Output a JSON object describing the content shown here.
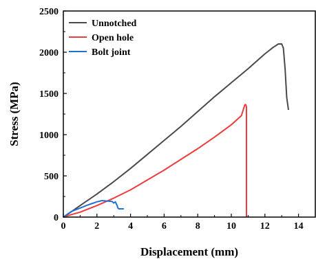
{
  "chart_data": {
    "type": "line",
    "xlabel": "Displacement (mm)",
    "ylabel": "Stress (MPa)",
    "xlim": [
      0,
      15
    ],
    "ylim": [
      0,
      2500
    ],
    "xticks": [
      0,
      2,
      4,
      6,
      8,
      10,
      12,
      14
    ],
    "yticks": [
      0,
      500,
      1000,
      1500,
      2000,
      2500
    ],
    "grid": false,
    "legend_position": "top-left",
    "series": [
      {
        "name": "Unnotched",
        "color": "#4a4a4a",
        "x": [
          0,
          0.3,
          1,
          2,
          3,
          4,
          5,
          6,
          7,
          8,
          9,
          10,
          11,
          12,
          12.5,
          12.8,
          13.0,
          13.1,
          13.2,
          13.3,
          13.4
        ],
        "y": [
          0,
          40,
          140,
          280,
          430,
          590,
          760,
          930,
          1100,
          1280,
          1460,
          1630,
          1800,
          1980,
          2060,
          2100,
          2100,
          2050,
          1800,
          1450,
          1300
        ]
      },
      {
        "name": "Open hole",
        "color": "#ee3b3b",
        "x": [
          0,
          0.3,
          1,
          2,
          3,
          4,
          5,
          6,
          7,
          8,
          9,
          10,
          10.6,
          10.8,
          10.85,
          10.9,
          10.9
        ],
        "y": [
          0,
          20,
          60,
          140,
          230,
          330,
          450,
          570,
          700,
          830,
          970,
          1120,
          1230,
          1360,
          1365,
          1340,
          0
        ]
      },
      {
        "name": "Bolt joint",
        "color": "#1f6fd6",
        "x": [
          0,
          0.2,
          0.5,
          1,
          1.5,
          2,
          2.3,
          2.6,
          2.9,
          3.0,
          3.1,
          3.2,
          3.25,
          3.3,
          3.6
        ],
        "y": [
          0,
          30,
          70,
          110,
          150,
          185,
          200,
          195,
          190,
          170,
          185,
          140,
          110,
          100,
          100
        ]
      }
    ]
  }
}
